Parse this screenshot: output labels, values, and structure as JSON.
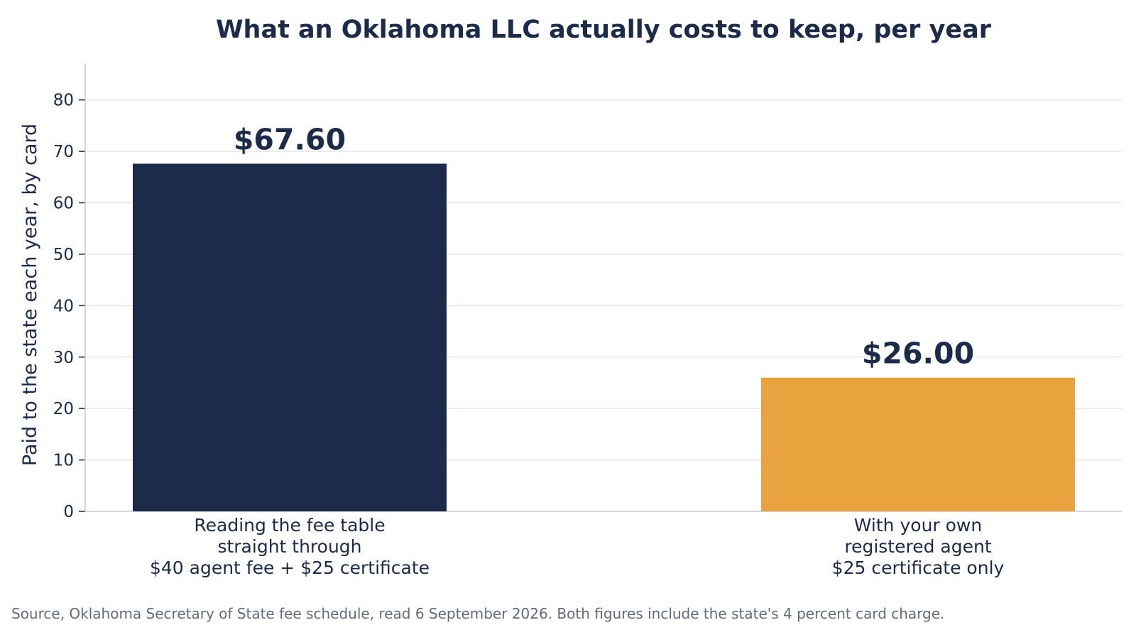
{
  "chart_data": {
    "type": "bar",
    "title": "What an Oklahoma LLC actually costs to keep, per year",
    "xlabel": "",
    "ylabel": "Paid to the state each year, by card",
    "ylim": [
      0,
      87
    ],
    "yticks": [
      0,
      10,
      20,
      30,
      40,
      50,
      60,
      70,
      80
    ],
    "grid": true,
    "categories": [
      [
        "Reading the fee table",
        "straight through",
        "$40 agent fee + $25 certificate"
      ],
      [
        "With your own",
        "registered agent",
        "$25 certificate only"
      ]
    ],
    "values": [
      67.6,
      26.0
    ],
    "data_labels": [
      "$67.60",
      "$26.00"
    ],
    "colors": [
      "#1c2b4a",
      "#e8a33e"
    ]
  },
  "colors": {
    "text": "#1c2b4a",
    "grid": "#e4e7ee",
    "axis": "#c3c7cf",
    "note": "#5f6b7e"
  },
  "source_note": "Source, Oklahoma Secretary of State fee schedule, read 6 September 2026. Both figures include the state's 4 percent card charge."
}
